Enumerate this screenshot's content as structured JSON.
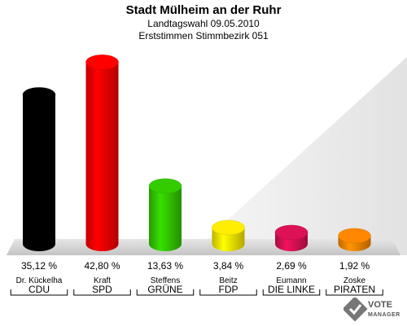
{
  "header": {
    "title": "Stadt Mülheim an der Ruhr",
    "subtitle": "Landtagswahl 09.05.2010",
    "subsubtitle": "Erststimmen Stimmbezirk 051"
  },
  "chart_data": {
    "type": "bar",
    "categories": [
      "CDU",
      "SPD",
      "GRÜNE",
      "FDP",
      "DIE LINKE",
      "PIRATEN"
    ],
    "candidates": [
      "Dr. Kückelha",
      "Kraft",
      "Steffens",
      "Beitz",
      "Eumann",
      "Zoske"
    ],
    "values": [
      35.12,
      42.8,
      13.63,
      3.84,
      2.69,
      1.92
    ],
    "value_labels": [
      "35,12 %",
      "42,80 %",
      "13,63 %",
      "3,84 %",
      "2,69 %",
      "1,92 %"
    ],
    "colors": [
      "#000000",
      "#ff0000",
      "#33cc00",
      "#ffee00",
      "#dd1155",
      "#ff8800"
    ],
    "ylim": [
      0,
      45
    ],
    "grid": false
  },
  "logo": {
    "line1": "VOTE",
    "line2": "MANAGER"
  }
}
